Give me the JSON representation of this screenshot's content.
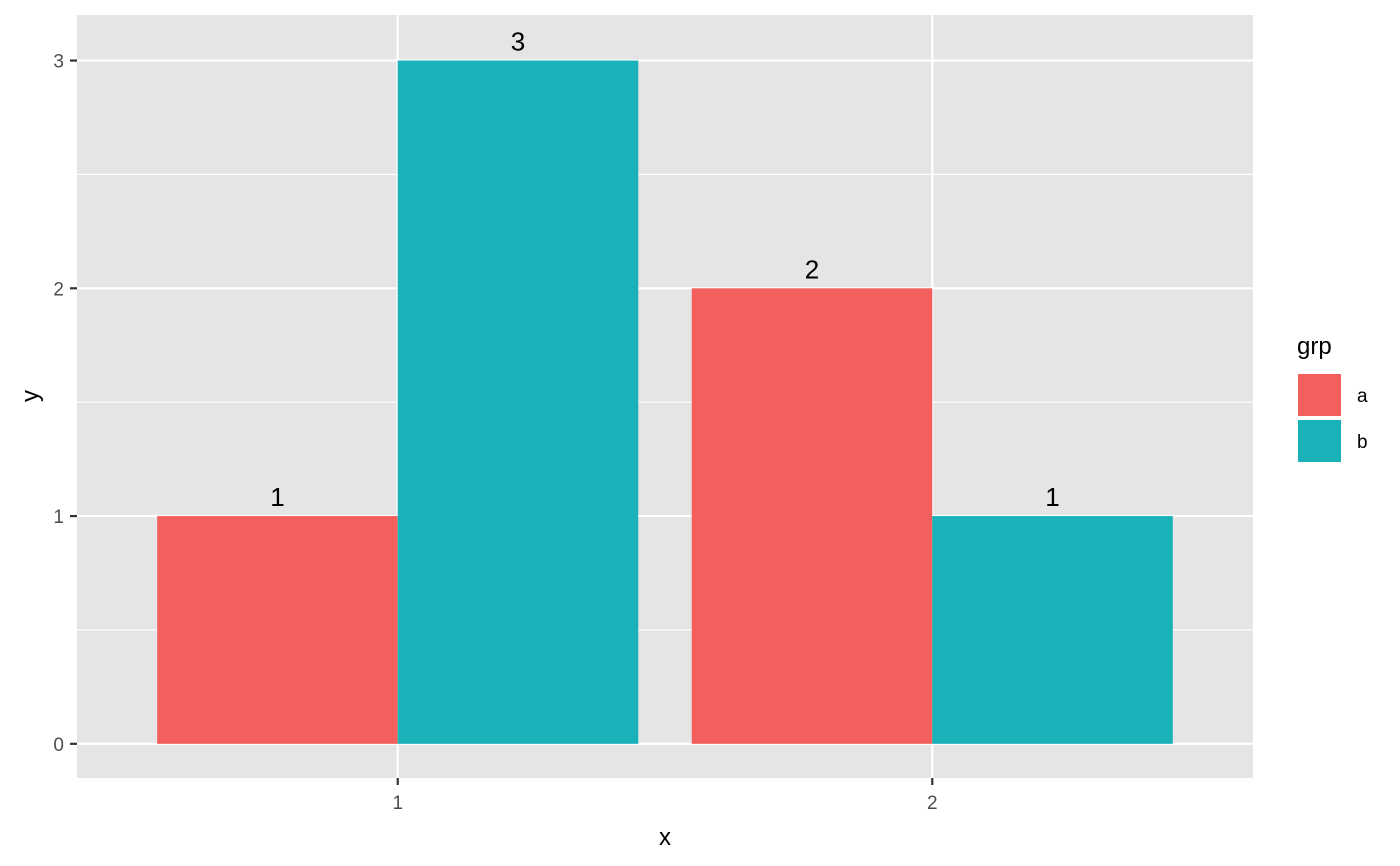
{
  "chart_data": {
    "type": "bar",
    "categories": [
      "1",
      "2"
    ],
    "series": [
      {
        "name": "a",
        "values": [
          1,
          2
        ],
        "color": "#F25F5C"
      },
      {
        "name": "b",
        "values": [
          3,
          1
        ],
        "color": "#19B2B8"
      }
    ],
    "xlabel": "x",
    "ylabel": "y",
    "ylim": [
      -0.15,
      3.2
    ],
    "yticks": [
      0,
      1,
      2,
      3
    ],
    "data_labels": true,
    "grid": true,
    "panel_background": "#E5E5E5",
    "grid_color": "#FFFFFF",
    "legend": {
      "title": "grp",
      "position": "right"
    }
  }
}
